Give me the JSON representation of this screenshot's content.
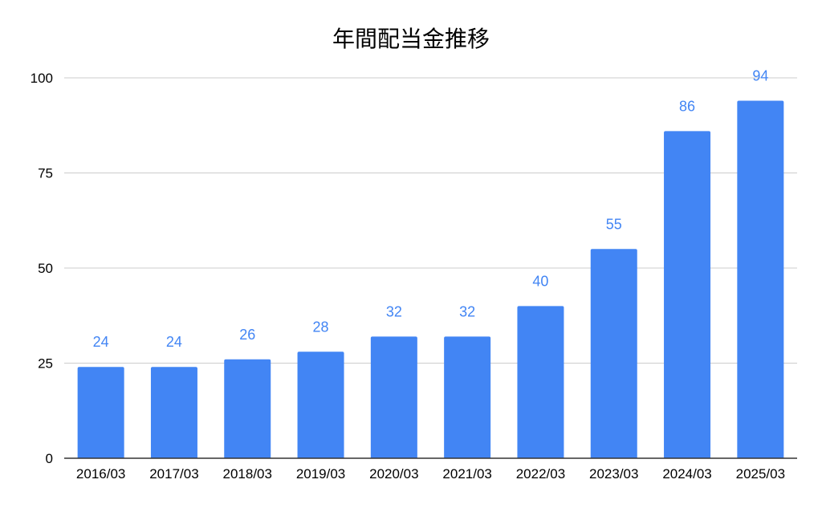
{
  "chart_data": {
    "type": "bar",
    "title": "年間配当金推移",
    "xlabel": "",
    "ylabel": "",
    "categories": [
      "2016/03",
      "2017/03",
      "2018/03",
      "2019/03",
      "2020/03",
      "2021/03",
      "2022/03",
      "2023/03",
      "2024/03",
      "2025/03"
    ],
    "values": [
      24,
      24,
      26,
      28,
      32,
      32,
      40,
      55,
      86,
      94
    ],
    "ylim": [
      0,
      100
    ],
    "yticks": [
      0,
      25,
      50,
      75,
      100
    ],
    "grid": true,
    "data_labels": true,
    "colors": {
      "bar": "#4285F4",
      "label": "#4285F4",
      "grid": "#CCCCCC",
      "axis": "#333333"
    }
  }
}
